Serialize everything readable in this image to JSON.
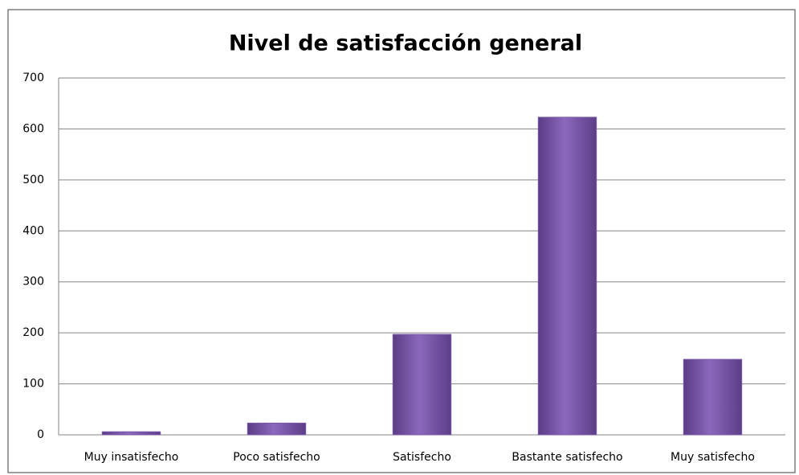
{
  "chart_data": {
    "type": "bar",
    "title": "Nivel de satisfacción general",
    "categories": [
      "Muy insatisfecho",
      "Poco satisfecho",
      "Satisfecho",
      "Bastante satisfecho",
      "Muy satisfecho"
    ],
    "values": [
      6,
      23,
      197,
      623,
      148
    ],
    "color": "#7b57ab",
    "ylim": [
      0,
      700
    ],
    "yticks": [
      0,
      100,
      200,
      300,
      400,
      500,
      600,
      700
    ],
    "grid": true
  }
}
